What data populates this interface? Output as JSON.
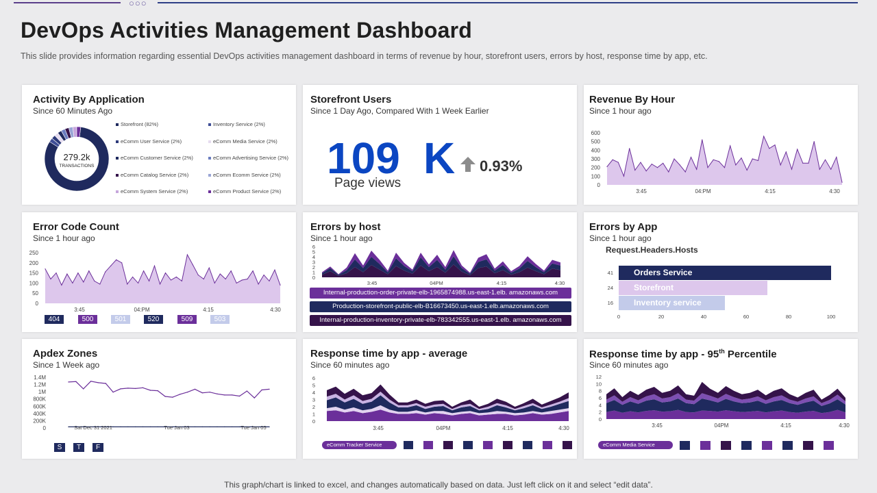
{
  "header": {
    "title": "DevOps Activities Management Dashboard",
    "subtitle": "This slide provides information regarding essential DevOps activities management dashboard in terms of revenue by hour, storefront users, errors by host, response time by app, etc."
  },
  "footer": {
    "text": "This graph/chart is linked to excel, and changes automatically based on data. Just left click on it and select “edit data”."
  },
  "colors": {
    "navy": "#1f2a5e",
    "purple": "#6b2f9a",
    "lavender": "#ddc7ec",
    "light_blue": "#c3cbea",
    "dark": "#35134a",
    "blue": "#0b46c2"
  },
  "activity": {
    "title": "Activity By Application",
    "subtitle": "Since 60 Minutes Ago",
    "donut_value": "279.2k",
    "donut_label": "TRANSACTIONS",
    "legend": [
      {
        "label": "Storefront (82%)",
        "color": "#1f2a5e"
      },
      {
        "label": "Inventory Service (2%)",
        "color": "#3f4e96"
      },
      {
        "label": "eComm User Service (2%)",
        "color": "#2d3a7a"
      },
      {
        "label": "eComm Media Service (2%)",
        "color": "#e6dcf0"
      },
      {
        "label": "eComm Customer Service (2%)",
        "color": "#1f2a5e"
      },
      {
        "label": "eComm Advertising Service (2%)",
        "color": "#6b7dc0"
      },
      {
        "label": "eComm Catalog Service (2%)",
        "color": "#35134a"
      },
      {
        "label": "eComm Ecomm Service (2%)",
        "color": "#9aa6d6"
      },
      {
        "label": "eComm System Service (2%)",
        "color": "#c6a6dc"
      },
      {
        "label": "eComm Product Service (2%)",
        "color": "#6b2f9a"
      }
    ],
    "chart_data": {
      "type": "pie",
      "labels": [
        "Storefront",
        "Inventory Service",
        "eComm User Service",
        "eComm Media Service",
        "eComm Customer Service",
        "eComm Advertising Service",
        "eComm Catalog Service",
        "eComm Ecomm Service",
        "eComm System Service",
        "eComm Product Service"
      ],
      "values": [
        82,
        2,
        2,
        2,
        2,
        2,
        2,
        2,
        2,
        2
      ]
    }
  },
  "storefront": {
    "title": "Storefront Users",
    "subtitle": "Since 1 Day Ago, Compared With 1 Week Earlier",
    "value_number": "109",
    "value_unit": "K",
    "change": "0.93%",
    "metric_label": "Page views"
  },
  "revenue": {
    "title": "Revenue By Hour",
    "subtitle": "Since 1 hour ago",
    "chart_data": {
      "type": "area",
      "yticks": [
        "600",
        "500",
        "400",
        "300",
        "200",
        "100",
        "0"
      ],
      "ylim": [
        0,
        600
      ],
      "xticks": [
        "3:45",
        "04:PM",
        "4:15",
        "4:30"
      ],
      "values": [
        210,
        290,
        260,
        100,
        420,
        170,
        260,
        160,
        240,
        200,
        250,
        150,
        300,
        230,
        150,
        320,
        180,
        520,
        200,
        290,
        270,
        200,
        450,
        230,
        310,
        170,
        300,
        280,
        560,
        420,
        460,
        230,
        380,
        180,
        410,
        250,
        250,
        500,
        180,
        290,
        180,
        320,
        30
      ]
    }
  },
  "errorcode": {
    "title": "Error Code Count",
    "subtitle": "Since 1 hour ago",
    "chips": [
      {
        "label": "404",
        "bg": "#1f2a5e",
        "fg": "#ffffff"
      },
      {
        "label": "500",
        "bg": "#6b2f9a",
        "fg": "#ffffff"
      },
      {
        "label": "501",
        "bg": "#c3cbea",
        "fg": "#ffffff"
      },
      {
        "label": "520",
        "bg": "#1f2a5e",
        "fg": "#ffffff"
      },
      {
        "label": "509",
        "bg": "#6b2f9a",
        "fg": "#ffffff"
      },
      {
        "label": "503",
        "bg": "#c3cbea",
        "fg": "#ffffff"
      }
    ],
    "chart_data": {
      "type": "area",
      "yticks": [
        "250",
        "200",
        "150",
        "100",
        "50",
        "0"
      ],
      "ylim": [
        0,
        250
      ],
      "xticks": [
        "3:45",
        "04:PM",
        "4:15",
        "4:30"
      ],
      "values": [
        170,
        120,
        150,
        90,
        145,
        100,
        150,
        105,
        160,
        110,
        95,
        155,
        185,
        215,
        200,
        95,
        130,
        100,
        160,
        110,
        185,
        95,
        150,
        115,
        130,
        110,
        240,
        190,
        140,
        120,
        175,
        100,
        145,
        120,
        160,
        100,
        115,
        120,
        160,
        95,
        140,
        110,
        165,
        90
      ]
    }
  },
  "errorshost": {
    "title": "Errors by host",
    "subtitle": "Since 1 hour ago",
    "hosts": [
      {
        "label": "Internal-production-order-private-elb-1965874988.us-east-1.elb. amazonaws.com",
        "color": "#6b2f9a"
      },
      {
        "label": "Production-storefront-public-elb-B16673450.us-east-1.elb.amazonaws.com",
        "color": "#1f2a5e"
      },
      {
        "label": "Internal-production-inventory-private-elb-783342555.us-east-1.elb. amazonaws.com",
        "color": "#35134a"
      }
    ],
    "chart_data": {
      "type": "area",
      "stacked": true,
      "yticks": [
        "6",
        "5",
        "4",
        "3",
        "2",
        "1",
        "0"
      ],
      "ylim": [
        0,
        6
      ],
      "xticks": [
        "3:45",
        "04PM",
        "4:15",
        "4:30"
      ],
      "series": [
        {
          "name": "Internal-production-inventory",
          "color": "#35134a",
          "values": [
            0.5,
            1.2,
            0.3,
            0.8,
            2.0,
            1.0,
            2.4,
            1.5,
            0.6,
            2.2,
            1.3,
            0.7,
            2.3,
            1.2,
            2.0,
            0.9,
            2.5,
            1.1,
            0.4,
            1.8,
            2.1,
            0.8,
            1.4,
            0.5,
            1.0,
            1.9,
            1.2,
            0.6,
            1.7,
            1.4
          ]
        },
        {
          "name": "Production-storefront",
          "color": "#1f2a5e",
          "values": [
            0.3,
            0.6,
            0.2,
            0.6,
            1.5,
            0.8,
            1.6,
            1.1,
            0.4,
            1.5,
            0.9,
            0.5,
            1.6,
            0.8,
            1.4,
            0.6,
            1.6,
            0.7,
            0.3,
            1.2,
            1.4,
            0.5,
            1.0,
            0.4,
            0.7,
            1.3,
            0.8,
            0.4,
            1.0,
            0.9
          ]
        },
        {
          "name": "Internal-production-order",
          "color": "#6b2f9a",
          "values": [
            0.2,
            0.3,
            0.1,
            0.5,
            1.2,
            0.5,
            1.2,
            0.8,
            0.3,
            1.1,
            0.6,
            0.3,
            0.9,
            0.5,
            1.0,
            0.5,
            1.2,
            0.5,
            0.2,
            0.8,
            1.0,
            0.4,
            0.7,
            0.3,
            0.5,
            0.9,
            0.6,
            0.3,
            0.7,
            0.6
          ]
        }
      ]
    }
  },
  "errorsapp": {
    "title": "Errors by App",
    "subtitle": "Since 1 hour ago",
    "chart_title": "Request.Headers.Hosts",
    "chart_data": {
      "type": "bar",
      "orientation": "horizontal",
      "categories": [
        "Orders Service",
        "Storefront",
        "Inventory service"
      ],
      "values": [
        100,
        70,
        50
      ],
      "count_labels": [
        "41",
        "24",
        "16"
      ],
      "colors": [
        "#1f2a5e",
        "#ddc7ec",
        "#c3cbea"
      ],
      "xticks": [
        "0",
        "20",
        "40",
        "60",
        "80",
        "100"
      ],
      "xlim": [
        0,
        100
      ]
    }
  },
  "apdex": {
    "title": "Apdex Zones",
    "subtitle": "Since 1 Week ago",
    "chips": [
      {
        "label": "S"
      },
      {
        "label": "T"
      },
      {
        "label": "F"
      }
    ],
    "chart_data": {
      "type": "line",
      "yticks": [
        "1.4M",
        "1.2M",
        "1M",
        "800K",
        "600K",
        "400K",
        "200K",
        "0"
      ],
      "xticks": [
        "Sat Dec 31   2021",
        "Tue Jan 03",
        "Tue Jan 05"
      ],
      "series": [
        {
          "name": "apdex",
          "color": "#6b2f9a",
          "values": [
            1.27,
            1.28,
            1.08,
            1.29,
            1.25,
            1.23,
            0.99,
            1.08,
            1.1,
            1.09,
            1.11,
            1.04,
            1.03,
            0.87,
            0.85,
            0.93,
            0.99,
            1.07,
            0.97,
            0.99,
            0.94,
            0.91,
            0.91,
            0.88,
            1.02,
            0.83,
            1.05,
            1.07
          ]
        },
        {
          "name": "baseline",
          "color": "#1f2a5e",
          "values": [
            0.03,
            0.03,
            0.03,
            0.03,
            0.03,
            0.03,
            0.03,
            0.03,
            0.03,
            0.03,
            0.03,
            0.03,
            0.03,
            0.03,
            0.03,
            0.03,
            0.03,
            0.03,
            0.03,
            0.03,
            0.03,
            0.03,
            0.03,
            0.03,
            0.03,
            0.03,
            0.03,
            0.03
          ]
        }
      ]
    }
  },
  "resp_avg": {
    "title": "Response time by app - average",
    "subtitle": "Since 60 minutes ago",
    "pill": "eComm Tracker Service",
    "squares": [
      "#1f2a5e",
      "#6b2f9a",
      "#35134a",
      "#1f2a5e",
      "#6b2f9a",
      "#35134a",
      "#1f2a5e",
      "#6b2f9a",
      "#35134a"
    ],
    "chart_data": {
      "type": "area",
      "stacked": true,
      "yticks": [
        "6",
        "5",
        "4",
        "3",
        "2",
        "1",
        "0"
      ],
      "ylim": [
        0,
        6
      ],
      "xticks": [
        "3:45",
        "04PM",
        "4:15",
        "4:30"
      ],
      "series": [
        {
          "name": "s1",
          "color": "#6b2f9a",
          "values": [
            1.4,
            1.5,
            1.2,
            1.4,
            1.1,
            1.3,
            1.6,
            1.2,
            1.0,
            1.0,
            1.1,
            0.9,
            1.1,
            1.0,
            0.8,
            1.0,
            1.1,
            0.8,
            0.9,
            1.0,
            1.0,
            0.8,
            0.9,
            1.1,
            0.9,
            1.0,
            1.2,
            1.4
          ]
        },
        {
          "name": "s2",
          "color": "#e2d3f0",
          "values": [
            0.4,
            0.5,
            0.4,
            0.5,
            0.4,
            0.4,
            0.6,
            0.4,
            0.3,
            0.3,
            0.4,
            0.3,
            0.3,
            0.4,
            0.3,
            0.3,
            0.3,
            0.3,
            0.3,
            0.4,
            0.3,
            0.3,
            0.3,
            0.3,
            0.3,
            0.4,
            0.4,
            0.4
          ]
        },
        {
          "name": "s3",
          "color": "#1f2a5e",
          "values": [
            1.1,
            1.3,
            1.0,
            1.2,
            0.9,
            1.0,
            1.4,
            1.0,
            0.6,
            0.6,
            0.7,
            0.5,
            0.6,
            0.7,
            0.4,
            0.6,
            0.7,
            0.4,
            0.5,
            0.8,
            0.6,
            0.4,
            0.6,
            0.8,
            0.5,
            0.6,
            0.8,
            1.0
          ]
        },
        {
          "name": "s4",
          "color": "#c8b2e2",
          "values": [
            0.5,
            0.5,
            0.4,
            0.5,
            0.4,
            0.4,
            0.5,
            0.4,
            0.3,
            0.3,
            0.3,
            0.3,
            0.3,
            0.3,
            0.2,
            0.3,
            0.3,
            0.2,
            0.3,
            0.3,
            0.3,
            0.2,
            0.3,
            0.3,
            0.2,
            0.3,
            0.3,
            0.4
          ]
        },
        {
          "name": "s5",
          "color": "#35134a",
          "values": [
            0.9,
            1.0,
            0.8,
            0.9,
            0.8,
            0.8,
            1.0,
            0.7,
            0.4,
            0.4,
            0.5,
            0.4,
            0.5,
            0.5,
            0.3,
            0.4,
            0.6,
            0.3,
            0.4,
            0.6,
            0.5,
            0.3,
            0.4,
            0.6,
            0.4,
            0.5,
            0.6,
            0.8
          ]
        }
      ]
    }
  },
  "resp_p95": {
    "title": "Response time by app - 95",
    "title_sup": "th",
    "title_end": "Percentile",
    "subtitle": "Since 60 minutes ago",
    "pill": "eComm Media Service",
    "squares": [
      "#1f2a5e",
      "#6b2f9a",
      "#35134a",
      "#1f2a5e",
      "#6b2f9a",
      "#1f2a5e",
      "#35134a",
      "#6b2f9a"
    ],
    "chart_data": {
      "type": "area",
      "stacked": true,
      "yticks": [
        "12",
        "10",
        "8",
        "6",
        "4",
        "2",
        "0"
      ],
      "ylim": [
        0,
        12
      ],
      "xticks": [
        "3:45",
        "04PM",
        "4:15",
        "4:30"
      ],
      "series": [
        {
          "name": "s1",
          "color": "#6b2f9a",
          "values": [
            2.0,
            2.4,
            1.8,
            2.2,
            1.9,
            2.3,
            2.5,
            2.1,
            2.2,
            2.6,
            2.0,
            1.9,
            2.4,
            2.3,
            2.1,
            2.5,
            2.2,
            2.0,
            2.1,
            2.3,
            1.9,
            2.2,
            2.4,
            2.0,
            1.8,
            2.1,
            2.3,
            1.7,
            2.0,
            2.6,
            1.9
          ]
        },
        {
          "name": "s2",
          "color": "#1f2a5e",
          "values": [
            2.5,
            3.0,
            2.2,
            2.8,
            2.4,
            2.9,
            3.1,
            2.6,
            2.8,
            3.2,
            2.5,
            2.3,
            3.4,
            3.0,
            2.6,
            3.2,
            2.8,
            2.5,
            2.6,
            2.9,
            2.4,
            2.8,
            3.0,
            2.5,
            2.2,
            2.6,
            2.9,
            2.0,
            2.4,
            3.0,
            2.2
          ]
        },
        {
          "name": "s3",
          "color": "#7d4fb2",
          "values": [
            1.0,
            1.3,
            0.9,
            1.2,
            1.0,
            1.2,
            1.4,
            1.1,
            1.2,
            1.5,
            1.0,
            1.0,
            1.5,
            1.3,
            1.1,
            1.4,
            1.2,
            1.0,
            1.1,
            1.2,
            1.0,
            1.2,
            1.3,
            1.0,
            0.9,
            1.1,
            1.2,
            0.8,
            1.0,
            1.3,
            0.9
          ]
        },
        {
          "name": "s4",
          "color": "#35134a",
          "values": [
            1.5,
            2.0,
            1.3,
            1.8,
            1.5,
            1.9,
            2.1,
            1.6,
            1.8,
            2.2,
            1.5,
            1.4,
            3.2,
            2.0,
            1.6,
            2.2,
            1.8,
            1.5,
            1.6,
            1.9,
            1.4,
            1.8,
            2.0,
            1.5,
            1.2,
            1.6,
            1.9,
            1.0,
            1.4,
            1.7,
            1.0
          ]
        }
      ]
    }
  }
}
